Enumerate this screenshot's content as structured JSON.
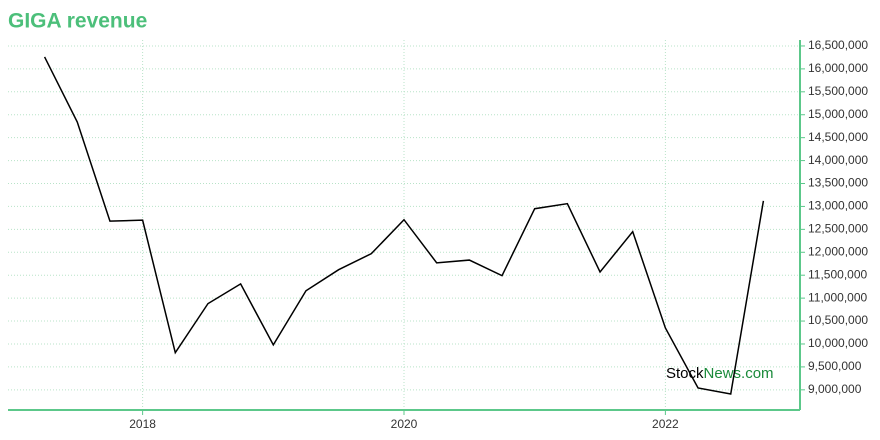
{
  "chart_data": {
    "type": "line",
    "title": "GIGA revenue",
    "watermark": [
      "Stock",
      "News.com"
    ],
    "x": [
      2017.25,
      2017.5,
      2017.75,
      2018.0,
      2018.25,
      2018.5,
      2018.75,
      2019.0,
      2019.25,
      2019.5,
      2019.75,
      2020.0,
      2020.25,
      2020.5,
      2020.75,
      2021.0,
      2021.25,
      2021.5,
      2021.75,
      2022.0,
      2022.25,
      2022.5,
      2022.75
    ],
    "series": [
      {
        "color": "#000000",
        "values": [
          16260000,
          14840000,
          12680000,
          12700000,
          9810000,
          10880000,
          11310000,
          9980000,
          11160000,
          11620000,
          11970000,
          12710000,
          11770000,
          11830000,
          11490000,
          12950000,
          13060000,
          11570000,
          12450000,
          10350000,
          9040000,
          8910000,
          13120000
        ]
      }
    ],
    "xlim": [
      2016.97,
      2023.03
    ],
    "xticks": [
      2018,
      2020,
      2022
    ],
    "ylim": [
      8560000,
      16630000
    ],
    "yticks": [
      {
        "value": 9000000,
        "label": "9,000,000"
      },
      {
        "value": 9500000,
        "label": "9,500,000"
      },
      {
        "value": 10000000,
        "label": "10,000,000"
      },
      {
        "value": 10500000,
        "label": "10,500,000"
      },
      {
        "value": 11000000,
        "label": "11,000,000"
      },
      {
        "value": 11500000,
        "label": "11,500,000"
      },
      {
        "value": 12000000,
        "label": "12,000,000"
      },
      {
        "value": 12500000,
        "label": "12,500,000"
      },
      {
        "value": 13000000,
        "label": "13,000,000"
      },
      {
        "value": 13500000,
        "label": "13,500,000"
      },
      {
        "value": 14000000,
        "label": "14,000,000"
      },
      {
        "value": 14500000,
        "label": "14,500,000"
      },
      {
        "value": 15000000,
        "label": "15,000,000"
      },
      {
        "value": 15500000,
        "label": "15,500,000"
      },
      {
        "value": 16000000,
        "label": "16,000,000"
      },
      {
        "value": 16500000,
        "label": "16,500,000"
      }
    ],
    "grid": true,
    "axis_color": "#5cc88a"
  }
}
